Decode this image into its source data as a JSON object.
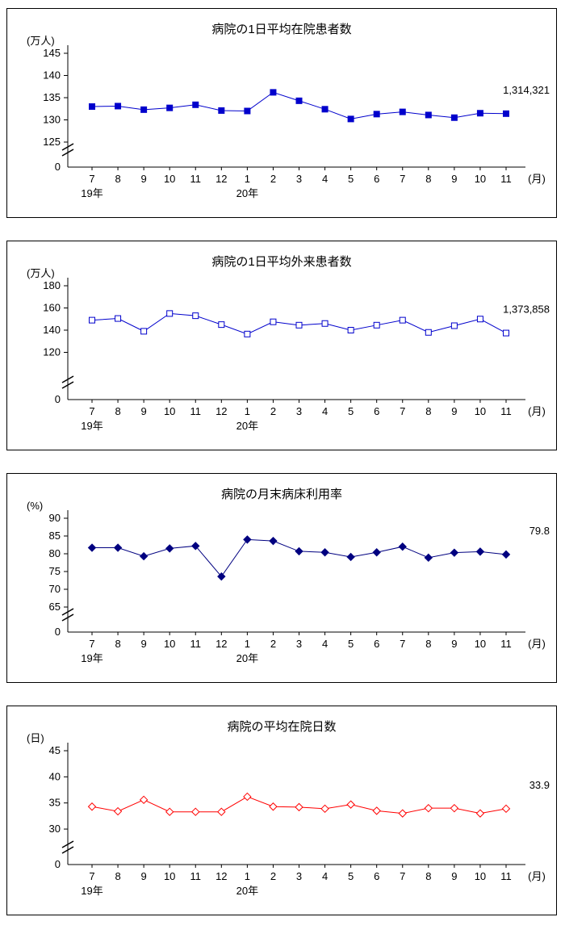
{
  "page": {
    "background": "#ffffff"
  },
  "chart_data": [
    {
      "type": "line",
      "title": "病院の1日平均在院患者数",
      "y_unit": "(万人)",
      "x_unit": "(月)",
      "categories": [
        "7",
        "8",
        "9",
        "10",
        "11",
        "12",
        "1",
        "2",
        "3",
        "4",
        "5",
        "6",
        "7",
        "8",
        "9",
        "10",
        "11"
      ],
      "year_labels": [
        {
          "label": "19年",
          "index": 0
        },
        {
          "label": "20年",
          "index": 6
        }
      ],
      "values": [
        133.0,
        133.1,
        132.3,
        132.7,
        133.4,
        132.1,
        132.0,
        136.2,
        134.3,
        132.4,
        130.2,
        131.3,
        131.8,
        131.1,
        130.5,
        131.5,
        131.4
      ],
      "ylim": [
        125,
        145
      ],
      "yticks": [
        125,
        130,
        135,
        140,
        145
      ],
      "zero_label": "0",
      "axis_break": true,
      "annotation": "1,314,321",
      "marker": "square-filled",
      "color": "#0000cc",
      "grid": false,
      "legend": "none"
    },
    {
      "type": "line",
      "title": "病院の1日平均外来患者数",
      "y_unit": "(万人)",
      "x_unit": "(月)",
      "categories": [
        "7",
        "8",
        "9",
        "10",
        "11",
        "12",
        "1",
        "2",
        "3",
        "4",
        "5",
        "6",
        "7",
        "8",
        "9",
        "10",
        "11"
      ],
      "year_labels": [
        {
          "label": "19年",
          "index": 0
        },
        {
          "label": "20年",
          "index": 6
        }
      ],
      "values": [
        149.0,
        150.5,
        139.0,
        155.0,
        153.0,
        145.0,
        136.5,
        147.5,
        144.5,
        146.0,
        140.0,
        144.5,
        149.0,
        138.0,
        144.0,
        150.0,
        137.4
      ],
      "ylim": [
        100,
        180
      ],
      "yticks": [
        120,
        140,
        160,
        180
      ],
      "zero_label": "0",
      "axis_break": true,
      "annotation": "1,373,858",
      "marker": "square-open",
      "color": "#0000cc",
      "grid": false,
      "legend": "none"
    },
    {
      "type": "line",
      "title": "病院の月末病床利用率",
      "y_unit": "(%)",
      "x_unit": "(月)",
      "categories": [
        "7",
        "8",
        "9",
        "10",
        "11",
        "12",
        "1",
        "2",
        "3",
        "4",
        "5",
        "6",
        "7",
        "8",
        "9",
        "10",
        "11"
      ],
      "year_labels": [
        {
          "label": "19年",
          "index": 0
        },
        {
          "label": "20年",
          "index": 6
        }
      ],
      "values": [
        81.7,
        81.7,
        79.3,
        81.5,
        82.2,
        73.6,
        84.0,
        83.6,
        80.7,
        80.4,
        79.1,
        80.4,
        82.0,
        78.9,
        80.3,
        80.6,
        79.8
      ],
      "ylim": [
        65,
        90
      ],
      "yticks": [
        65,
        70,
        75,
        80,
        85,
        90
      ],
      "zero_label": "0",
      "axis_break": true,
      "annotation": "79.8",
      "marker": "diamond-filled",
      "color": "#000080",
      "grid": false,
      "legend": "none"
    },
    {
      "type": "line",
      "title": "病院の平均在院日数",
      "y_unit": "(日)",
      "x_unit": "(月)",
      "categories": [
        "7",
        "8",
        "9",
        "10",
        "11",
        "12",
        "1",
        "2",
        "3",
        "4",
        "5",
        "6",
        "7",
        "8",
        "9",
        "10",
        "11"
      ],
      "year_labels": [
        {
          "label": "19年",
          "index": 0
        },
        {
          "label": "20年",
          "index": 6
        }
      ],
      "values": [
        34.3,
        33.4,
        35.6,
        33.3,
        33.3,
        33.3,
        36.2,
        34.3,
        34.2,
        33.9,
        34.7,
        33.5,
        33.0,
        34.0,
        34.0,
        33.0,
        33.9
      ],
      "ylim": [
        28,
        45
      ],
      "yticks": [
        30,
        35,
        40,
        45
      ],
      "zero_label": "0",
      "axis_break": true,
      "annotation": "33.9",
      "marker": "diamond-open",
      "color": "#ff0000",
      "grid": false,
      "legend": "none"
    }
  ]
}
